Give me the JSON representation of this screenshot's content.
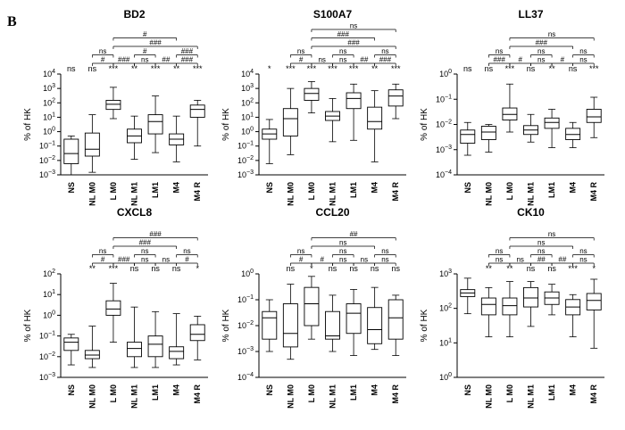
{
  "panel_label": "B",
  "chart_data": [
    {
      "type": "boxplot",
      "title": "BD2",
      "ylabel": "% of HK",
      "yscale": "log",
      "ylim_exp": [
        -3,
        4
      ],
      "categories": [
        "NS",
        "NL M0",
        "L M0",
        "NL M1",
        "LM1",
        "M4",
        "M4 R"
      ],
      "boxes": [
        {
          "min": 0.001,
          "q1": 0.006,
          "median": 0.03,
          "q3": 0.3,
          "max": 0.5
        },
        {
          "min": 0.0015,
          "q1": 0.02,
          "median": 0.06,
          "q3": 0.8,
          "max": 15
        },
        {
          "min": 8,
          "q1": 35,
          "median": 80,
          "q3": 150,
          "max": 1200
        },
        {
          "min": 0.012,
          "q1": 0.17,
          "median": 0.5,
          "q3": 1.5,
          "max": 12
        },
        {
          "min": 0.035,
          "q1": 0.7,
          "median": 5,
          "q3": 15,
          "max": 300
        },
        {
          "min": 0.008,
          "q1": 0.12,
          "median": 0.3,
          "q3": 0.7,
          "max": 12
        },
        {
          "min": 0.1,
          "q1": 10,
          "median": 35,
          "q3": 70,
          "max": 150
        }
      ],
      "sig_vs_ns": [
        "ns",
        "ns",
        "***",
        "**",
        "***",
        "**",
        "***"
      ],
      "bracket_rows": [
        {
          "row": 0,
          "from": 2,
          "to": 5,
          "label": "#"
        },
        {
          "row": 1,
          "from": 2,
          "to": 6,
          "label": "###"
        },
        {
          "row": 2,
          "from": 1,
          "to": 2,
          "label": "ns"
        },
        {
          "row": 2,
          "from": 3,
          "to": 4,
          "label": "#"
        },
        {
          "row": 2,
          "from": 5,
          "to": 6,
          "label": "###"
        },
        {
          "row": 3,
          "from": 1,
          "to": 2,
          "label": "#"
        },
        {
          "row": 3,
          "from": 2,
          "to": 3,
          "label": "###"
        },
        {
          "row": 3,
          "from": 3,
          "to": 4,
          "label": "ns"
        },
        {
          "row": 3,
          "from": 4,
          "to": 5,
          "label": "##"
        },
        {
          "row": 3,
          "from": 5,
          "to": 6,
          "label": "###"
        }
      ]
    },
    {
      "type": "boxplot",
      "title": "S100A7",
      "ylabel": "% of HK",
      "yscale": "log",
      "ylim_exp": [
        -3,
        4
      ],
      "categories": [
        "NS",
        "NL M0",
        "L M0",
        "NL M1",
        "LM1",
        "M4",
        "M4 R"
      ],
      "boxes": [
        {
          "min": 0.006,
          "q1": 0.3,
          "median": 0.7,
          "q3": 1.5,
          "max": 7
        },
        {
          "min": 0.025,
          "q1": 0.5,
          "median": 8,
          "q3": 40,
          "max": 1000
        },
        {
          "min": 20,
          "q1": 150,
          "median": 450,
          "q3": 1000,
          "max": 3000
        },
        {
          "min": 0.2,
          "q1": 6,
          "median": 12,
          "q3": 25,
          "max": 200
        },
        {
          "min": 0.25,
          "q1": 40,
          "median": 200,
          "q3": 500,
          "max": 2000
        },
        {
          "min": 0.008,
          "q1": 1.5,
          "median": 5,
          "q3": 50,
          "max": 700
        },
        {
          "min": 8,
          "q1": 60,
          "median": 300,
          "q3": 800,
          "max": 2000
        }
      ],
      "sig_vs_ns": [
        "*",
        "***",
        "***",
        "***",
        "***",
        "**",
        "***"
      ],
      "bracket_rows": [
        {
          "row": 0,
          "from": 2,
          "to": 6,
          "label": "ns"
        },
        {
          "row": 1,
          "from": 2,
          "to": 5,
          "label": "###"
        },
        {
          "row": 2,
          "from": 2,
          "to": 6,
          "label": "###"
        },
        {
          "row": 3,
          "from": 1,
          "to": 2,
          "label": "ns"
        },
        {
          "row": 3,
          "from": 3,
          "to": 4,
          "label": "ns"
        },
        {
          "row": 3,
          "from": 5,
          "to": 6,
          "label": "ns"
        },
        {
          "row": 4,
          "from": 1,
          "to": 2,
          "label": "#"
        },
        {
          "row": 4,
          "from": 2,
          "to": 3,
          "label": "ns"
        },
        {
          "row": 4,
          "from": 3,
          "to": 4,
          "label": "ns"
        },
        {
          "row": 4,
          "from": 4,
          "to": 5,
          "label": "##"
        },
        {
          "row": 4,
          "from": 5,
          "to": 6,
          "label": "###"
        }
      ]
    },
    {
      "type": "boxplot",
      "title": "LL37",
      "ylabel": "% of HK",
      "yscale": "log",
      "ylim_exp": [
        -4,
        0
      ],
      "categories": [
        "NS",
        "NL M0",
        "L M0",
        "NL M1",
        "LM1",
        "M4",
        "M4 R"
      ],
      "boxes": [
        {
          "min": 0.0006,
          "q1": 0.0018,
          "median": 0.004,
          "q3": 0.006,
          "max": 0.012
        },
        {
          "min": 0.0008,
          "q1": 0.0025,
          "median": 0.005,
          "q3": 0.0085,
          "max": 0.01
        },
        {
          "min": 0.005,
          "q1": 0.015,
          "median": 0.025,
          "q3": 0.045,
          "max": 0.4
        },
        {
          "min": 0.002,
          "q1": 0.004,
          "median": 0.006,
          "q3": 0.009,
          "max": 0.025
        },
        {
          "min": 0.0012,
          "q1": 0.007,
          "median": 0.012,
          "q3": 0.018,
          "max": 0.04
        },
        {
          "min": 0.0012,
          "q1": 0.0025,
          "median": 0.004,
          "q3": 0.007,
          "max": 0.012
        },
        {
          "min": 0.003,
          "q1": 0.012,
          "median": 0.02,
          "q3": 0.04,
          "max": 0.12
        }
      ],
      "sig_vs_ns": [
        "ns",
        "ns",
        "***",
        "ns",
        "**",
        "ns",
        "***"
      ],
      "bracket_rows": [
        {
          "row": 0,
          "from": 2,
          "to": 6,
          "label": "ns"
        },
        {
          "row": 1,
          "from": 2,
          "to": 5,
          "label": "###"
        },
        {
          "row": 2,
          "from": 1,
          "to": 2,
          "label": "ns"
        },
        {
          "row": 2,
          "from": 3,
          "to": 4,
          "label": "ns"
        },
        {
          "row": 2,
          "from": 5,
          "to": 6,
          "label": "ns"
        },
        {
          "row": 3,
          "from": 1,
          "to": 2,
          "label": "###"
        },
        {
          "row": 3,
          "from": 2,
          "to": 3,
          "label": "#"
        },
        {
          "row": 3,
          "from": 3,
          "to": 4,
          "label": "ns"
        },
        {
          "row": 3,
          "from": 4,
          "to": 5,
          "label": "#"
        },
        {
          "row": 3,
          "from": 5,
          "to": 6,
          "label": "ns"
        }
      ]
    },
    {
      "type": "boxplot",
      "title": "CXCL8",
      "ylabel": "% of HK",
      "yscale": "log",
      "ylim_exp": [
        -3,
        2
      ],
      "categories": [
        "NS",
        "NL M0",
        "L M0",
        "NL M1",
        "LM1",
        "M4",
        "M4 R"
      ],
      "boxes": [
        {
          "min": 0.004,
          "q1": 0.02,
          "median": 0.05,
          "q3": 0.08,
          "max": 0.12
        },
        {
          "min": 0.003,
          "q1": 0.008,
          "median": 0.012,
          "q3": 0.02,
          "max": 0.3
        },
        {
          "min": 0.05,
          "q1": 1,
          "median": 2,
          "q3": 5,
          "max": 35
        },
        {
          "min": 0.003,
          "q1": 0.01,
          "median": 0.025,
          "q3": 0.05,
          "max": 2.5
        },
        {
          "min": 0.003,
          "q1": 0.01,
          "median": 0.04,
          "q3": 0.1,
          "max": 1.5
        },
        {
          "min": 0.004,
          "q1": 0.008,
          "median": 0.018,
          "q3": 0.03,
          "max": 1.2
        },
        {
          "min": 0.007,
          "q1": 0.06,
          "median": 0.12,
          "q3": 0.35,
          "max": 0.9
        }
      ],
      "sig_vs_ns": [
        "**",
        "***",
        "ns",
        "ns",
        "ns",
        "*"
      ],
      "sig_positions": [
        1,
        2,
        3,
        4,
        5,
        6
      ],
      "bracket_rows": [
        {
          "row": 0,
          "from": 2,
          "to": 6,
          "label": "###"
        },
        {
          "row": 1,
          "from": 2,
          "to": 5,
          "label": "###"
        },
        {
          "row": 2,
          "from": 1,
          "to": 2,
          "label": "ns"
        },
        {
          "row": 2,
          "from": 3,
          "to": 4,
          "label": "ns"
        },
        {
          "row": 2,
          "from": 5,
          "to": 6,
          "label": "ns"
        },
        {
          "row": 3,
          "from": 1,
          "to": 2,
          "label": "#"
        },
        {
          "row": 3,
          "from": 2,
          "to": 3,
          "label": "###"
        },
        {
          "row": 3,
          "from": 3,
          "to": 4,
          "label": "ns"
        },
        {
          "row": 3,
          "from": 4,
          "to": 5,
          "label": "ns"
        },
        {
          "row": 3,
          "from": 5,
          "to": 6,
          "label": "#"
        }
      ]
    },
    {
      "type": "boxplot",
      "title": "CCL20",
      "ylabel": "% of HK",
      "yscale": "log",
      "ylim_exp": [
        -4,
        0
      ],
      "categories": [
        "NS",
        "NL M0",
        "L M0",
        "NL M1",
        "LM1",
        "M4",
        "M4 R"
      ],
      "boxes": [
        {
          "min": 0.001,
          "q1": 0.003,
          "median": 0.02,
          "q3": 0.035,
          "max": 0.1
        },
        {
          "min": 0.0005,
          "q1": 0.0015,
          "median": 0.005,
          "q3": 0.07,
          "max": 0.4
        },
        {
          "min": 0.003,
          "q1": 0.01,
          "median": 0.07,
          "q3": 0.3,
          "max": 0.8
        },
        {
          "min": 0.001,
          "q1": 0.003,
          "median": 0.004,
          "q3": 0.035,
          "max": 0.15
        },
        {
          "min": 0.0007,
          "q1": 0.005,
          "median": 0.03,
          "q3": 0.07,
          "max": 0.25
        },
        {
          "min": 0.0012,
          "q1": 0.002,
          "median": 0.007,
          "q3": 0.05,
          "max": 0.3
        },
        {
          "min": 0.0007,
          "q1": 0.003,
          "median": 0.02,
          "q3": 0.1,
          "max": 0.15
        }
      ],
      "sig_vs_ns": [
        "ns",
        "*",
        "ns",
        "ns",
        "ns",
        "ns"
      ],
      "sig_positions": [
        1,
        2,
        3,
        4,
        5,
        6
      ],
      "bracket_rows": [
        {
          "row": 0,
          "from": 2,
          "to": 6,
          "label": "##"
        },
        {
          "row": 1,
          "from": 2,
          "to": 5,
          "label": "ns"
        },
        {
          "row": 2,
          "from": 1,
          "to": 2,
          "label": "ns"
        },
        {
          "row": 2,
          "from": 3,
          "to": 4,
          "label": "ns"
        },
        {
          "row": 2,
          "from": 5,
          "to": 6,
          "label": "ns"
        },
        {
          "row": 3,
          "from": 1,
          "to": 2,
          "label": "#"
        },
        {
          "row": 3,
          "from": 2,
          "to": 3,
          "label": "#"
        },
        {
          "row": 3,
          "from": 3,
          "to": 4,
          "label": "ns"
        },
        {
          "row": 3,
          "from": 4,
          "to": 5,
          "label": "ns"
        },
        {
          "row": 3,
          "from": 5,
          "to": 6,
          "label": "ns"
        }
      ]
    },
    {
      "type": "boxplot",
      "title": "CK10",
      "ylabel": "% of HK",
      "yscale": "log",
      "ylim_exp": [
        0,
        3
      ],
      "categories": [
        "NS",
        "NL M0",
        "L M0",
        "NL M1",
        "LM1",
        "M4",
        "M4 R"
      ],
      "boxes": [
        {
          "min": 70,
          "q1": 220,
          "median": 280,
          "q3": 350,
          "max": 750
        },
        {
          "min": 15,
          "q1": 65,
          "median": 130,
          "q3": 200,
          "max": 400
        },
        {
          "min": 15,
          "q1": 65,
          "median": 120,
          "q3": 200,
          "max": 600
        },
        {
          "min": 30,
          "q1": 110,
          "median": 200,
          "q3": 400,
          "max": 600
        },
        {
          "min": 65,
          "q1": 130,
          "median": 200,
          "q3": 300,
          "max": 500
        },
        {
          "min": 15,
          "q1": 65,
          "median": 110,
          "q3": 180,
          "max": 250
        },
        {
          "min": 7,
          "q1": 90,
          "median": 170,
          "q3": 270,
          "max": 700
        }
      ],
      "sig_vs_ns": [
        "**",
        "**",
        "ns",
        "ns",
        "***",
        "*"
      ],
      "sig_positions": [
        1,
        2,
        3,
        4,
        5,
        6
      ],
      "bracket_rows": [
        {
          "row": 0,
          "from": 2,
          "to": 6,
          "label": "ns"
        },
        {
          "row": 1,
          "from": 2,
          "to": 5,
          "label": "ns"
        },
        {
          "row": 2,
          "from": 1,
          "to": 2,
          "label": "ns"
        },
        {
          "row": 2,
          "from": 3,
          "to": 4,
          "label": "ns"
        },
        {
          "row": 2,
          "from": 5,
          "to": 6,
          "label": "ns"
        },
        {
          "row": 3,
          "from": 1,
          "to": 2,
          "label": "ns"
        },
        {
          "row": 3,
          "from": 2,
          "to": 3,
          "label": "ns"
        },
        {
          "row": 3,
          "from": 3,
          "to": 4,
          "label": "##"
        },
        {
          "row": 3,
          "from": 4,
          "to": 5,
          "label": "##"
        },
        {
          "row": 3,
          "from": 5,
          "to": 6,
          "label": "ns"
        }
      ]
    }
  ]
}
